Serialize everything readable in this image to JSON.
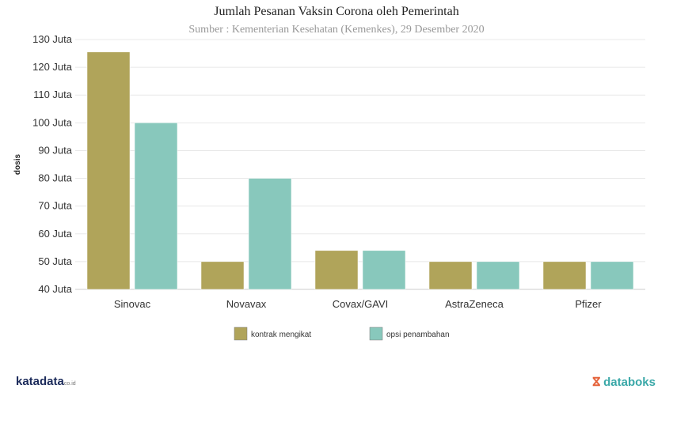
{
  "chart_data": {
    "type": "bar",
    "title": "Jumlah Pesanan Vaksin Corona oleh Pemerintah",
    "subtitle": "Sumber : Kementerian Kesehatan (Kemenkes), 29 Desember 2020",
    "xlabel": "",
    "ylabel": "dosis",
    "ylim": [
      40,
      130
    ],
    "yticks": [
      40,
      50,
      60,
      70,
      80,
      90,
      100,
      110,
      120,
      130
    ],
    "ytick_suffix": " Juta",
    "categories": [
      "Sinovac",
      "Novavax",
      "Covax/GAVI",
      "AstraZeneca",
      "Pfizer"
    ],
    "series": [
      {
        "name": "kontrak mengikat",
        "color": "#b0a45a",
        "values": [
          125.5,
          50,
          54,
          50,
          50
        ]
      },
      {
        "name": "opsi penambahan",
        "color": "#88c8bc",
        "values": [
          100,
          80,
          54,
          50,
          50
        ]
      }
    ],
    "grid": true,
    "legend": "bottom-center"
  },
  "branding": {
    "left": "katadata",
    "left_suffix": "co.id",
    "right": "databoks"
  }
}
